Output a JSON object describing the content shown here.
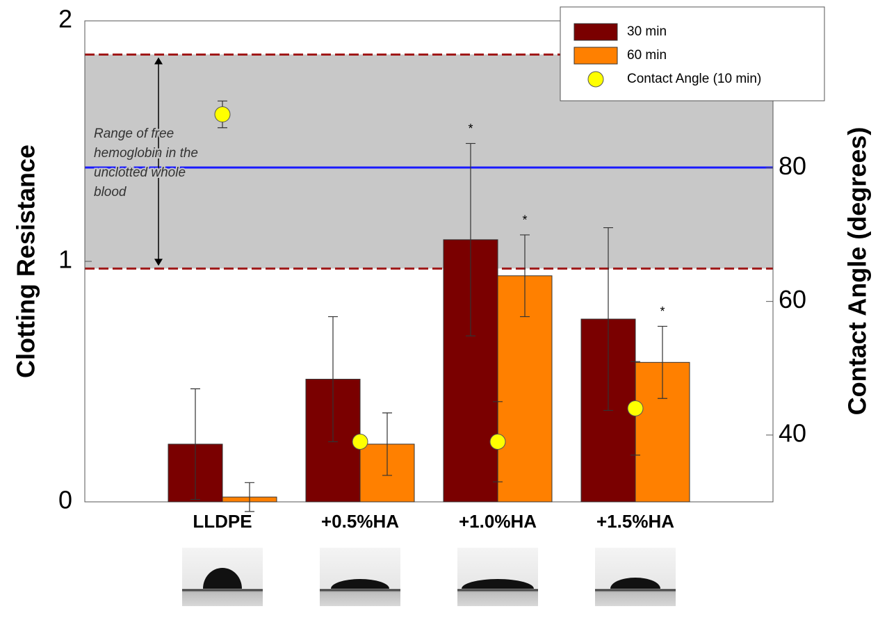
{
  "chart_data": {
    "type": "bar",
    "categories": [
      "LLDPE",
      "+0.5%HA",
      "+1.0%HA",
      "+1.5%HA"
    ],
    "series": [
      {
        "name": "30 min",
        "color": "#7a0000",
        "values": [
          0.24,
          0.51,
          1.09,
          0.76
        ],
        "errors": [
          0.23,
          0.26,
          0.4,
          0.38
        ],
        "significance": [
          null,
          null,
          "*",
          null
        ]
      },
      {
        "name": "60 min",
        "color": "#ff8000",
        "values": [
          0.02,
          0.24,
          0.94,
          0.58
        ],
        "errors": [
          0.06,
          0.13,
          0.17,
          0.15
        ],
        "significance": [
          null,
          null,
          "*",
          "*"
        ]
      },
      {
        "name": "Contact Angle (10 min)",
        "type": "scatter",
        "axis": "y2",
        "color": "#ffff00",
        "values": [
          88,
          39,
          39,
          44
        ],
        "errors": [
          2,
          null,
          6,
          7
        ]
      }
    ],
    "ylabel": "Clotting Resistance",
    "y2label": "Contact Angle (degrees)",
    "ylim": [
      0,
      2
    ],
    "yticks": [
      0,
      1,
      2
    ],
    "y2lim": [
      30,
      102
    ],
    "y2ticks": [
      40,
      60,
      80
    ],
    "reference_band": [
      0.97,
      1.86
    ],
    "reference_line": 1.39,
    "annotation": [
      "Range of free",
      "hemoglobin in the",
      "unclotted whole",
      "blood"
    ]
  }
}
